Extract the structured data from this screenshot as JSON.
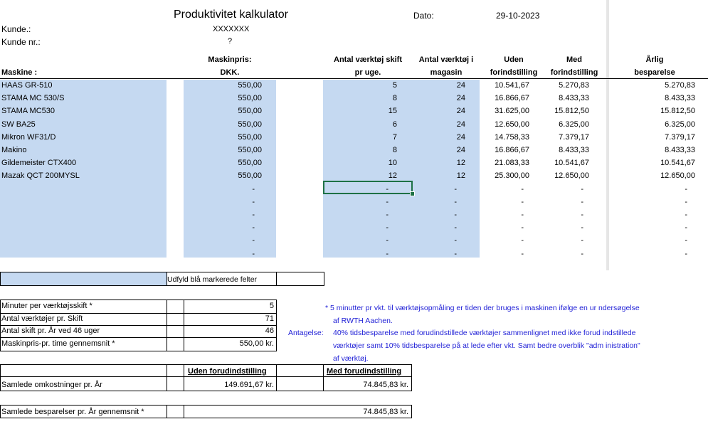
{
  "header": {
    "title": "Produktivitet kalkulator",
    "date_label": "Dato:",
    "date_value": "29-10-2023",
    "kunde_label": "Kunde.:",
    "kunde_value": "XXXXXXX",
    "kunde_nr_label": "Kunde nr.:",
    "kunde_nr_value": "?"
  },
  "columns": {
    "maskine": "Maskine :",
    "maskinpris_1": "Maskinpris:",
    "maskinpris_2": "DKK.",
    "antal_skift_1": "Antal værktøj skift",
    "antal_skift_2": "pr uge.",
    "antal_magasin_1": "Antal værktøj i",
    "antal_magasin_2": "magasin",
    "uden_1": "Uden",
    "uden_2": "forindstilling",
    "med_1": "Med",
    "med_2": "forindstilling",
    "aarlig_1": "Årlig",
    "aarlig_2": "besparelse"
  },
  "rows": [
    {
      "maskine": "HAAS GR-510",
      "pris": "550,00",
      "skift": "5",
      "magasin": "24",
      "uden": "10.541,67",
      "med": "5.270,83",
      "besparelse": "5.270,83"
    },
    {
      "maskine": "STAMA MC 530/S",
      "pris": "550,00",
      "skift": "8",
      "magasin": "24",
      "uden": "16.866,67",
      "med": "8.433,33",
      "besparelse": "8.433,33"
    },
    {
      "maskine": "STAMA MC530",
      "pris": "550,00",
      "skift": "15",
      "magasin": "24",
      "uden": "31.625,00",
      "med": "15.812,50",
      "besparelse": "15.812,50"
    },
    {
      "maskine": "SW BA25",
      "pris": "550,00",
      "skift": "6",
      "magasin": "24",
      "uden": "12.650,00",
      "med": "6.325,00",
      "besparelse": "6.325,00"
    },
    {
      "maskine": "Mikron WF31/D",
      "pris": "550,00",
      "skift": "7",
      "magasin": "24",
      "uden": "14.758,33",
      "med": "7.379,17",
      "besparelse": "7.379,17"
    },
    {
      "maskine": "Makino",
      "pris": "550,00",
      "skift": "8",
      "magasin": "24",
      "uden": "16.866,67",
      "med": "8.433,33",
      "besparelse": "8.433,33"
    },
    {
      "maskine": "Gildemeister CTX400",
      "pris": "550,00",
      "skift": "10",
      "magasin": "12",
      "uden": "21.083,33",
      "med": "10.541,67",
      "besparelse": "10.541,67"
    },
    {
      "maskine": "Mazak QCT 200MYSL",
      "pris": "550,00",
      "skift": "12",
      "magasin": "12",
      "uden": "25.300,00",
      "med": "12.650,00",
      "besparelse": "12.650,00"
    },
    {
      "maskine": "",
      "pris": "-",
      "skift": "-",
      "magasin": "-",
      "uden": "-",
      "med": "-",
      "besparelse": "-"
    },
    {
      "maskine": "",
      "pris": "-",
      "skift": "-",
      "magasin": "-",
      "uden": "-",
      "med": "-",
      "besparelse": "-"
    },
    {
      "maskine": "",
      "pris": "-",
      "skift": "-",
      "magasin": "-",
      "uden": "-",
      "med": "-",
      "besparelse": "-"
    },
    {
      "maskine": "",
      "pris": "-",
      "skift": "-",
      "magasin": "-",
      "uden": "-",
      "med": "-",
      "besparelse": "-"
    },
    {
      "maskine": "",
      "pris": "-",
      "skift": "-",
      "magasin": "-",
      "uden": "-",
      "med": "-",
      "besparelse": "-"
    },
    {
      "maskine": "",
      "pris": "-",
      "skift": "-",
      "magasin": "-",
      "uden": "-",
      "med": "-",
      "besparelse": "-"
    }
  ],
  "legend_text": "Udfyld blå markerede felter",
  "params": [
    {
      "label": "Minuter per værktøjsskift *",
      "value": "5"
    },
    {
      "label": "Antal værktøjer pr. Skift",
      "value": "71"
    },
    {
      "label": "Antal skift pr. År ved 46 uger",
      "value": "46"
    },
    {
      "label": "Maskinpris-pr. time  gennemsnit *",
      "value": "550,00 kr."
    }
  ],
  "notes": {
    "l1": "*  5 minutter pr vkt. til værktøjsopmåling er tiden der bruges i maskinen ifølge en ur   ndersøgelse",
    "l2": "af RWTH Aachen.",
    "antagelse": "Antagelse:",
    "l3": "40% tidsbesparelse med forudindstillede værktøjer sammenlignet med ikke forud    indstillede",
    "l4": "værktøjer samt 10% tidsbesparelse på at lede efter vkt. Samt bedre overblik \"adm   inistration\"",
    "l5": "af værktøj."
  },
  "summary": {
    "uden_header": "Uden forudindstilling",
    "med_header": "Med forudindstilling",
    "omk_label": "Samlede omkostninger pr. År",
    "omk_uden": "149.691,67 kr.",
    "omk_med": "74.845,83 kr.",
    "bes_label": "Samlede besparelser pr. År gennemsnit *",
    "bes_value": "74.845,83 kr."
  },
  "colors": {
    "input_fill": "#c5d9f1",
    "note_text": "#1f1fd6",
    "selected_cell": "#1e7145"
  }
}
